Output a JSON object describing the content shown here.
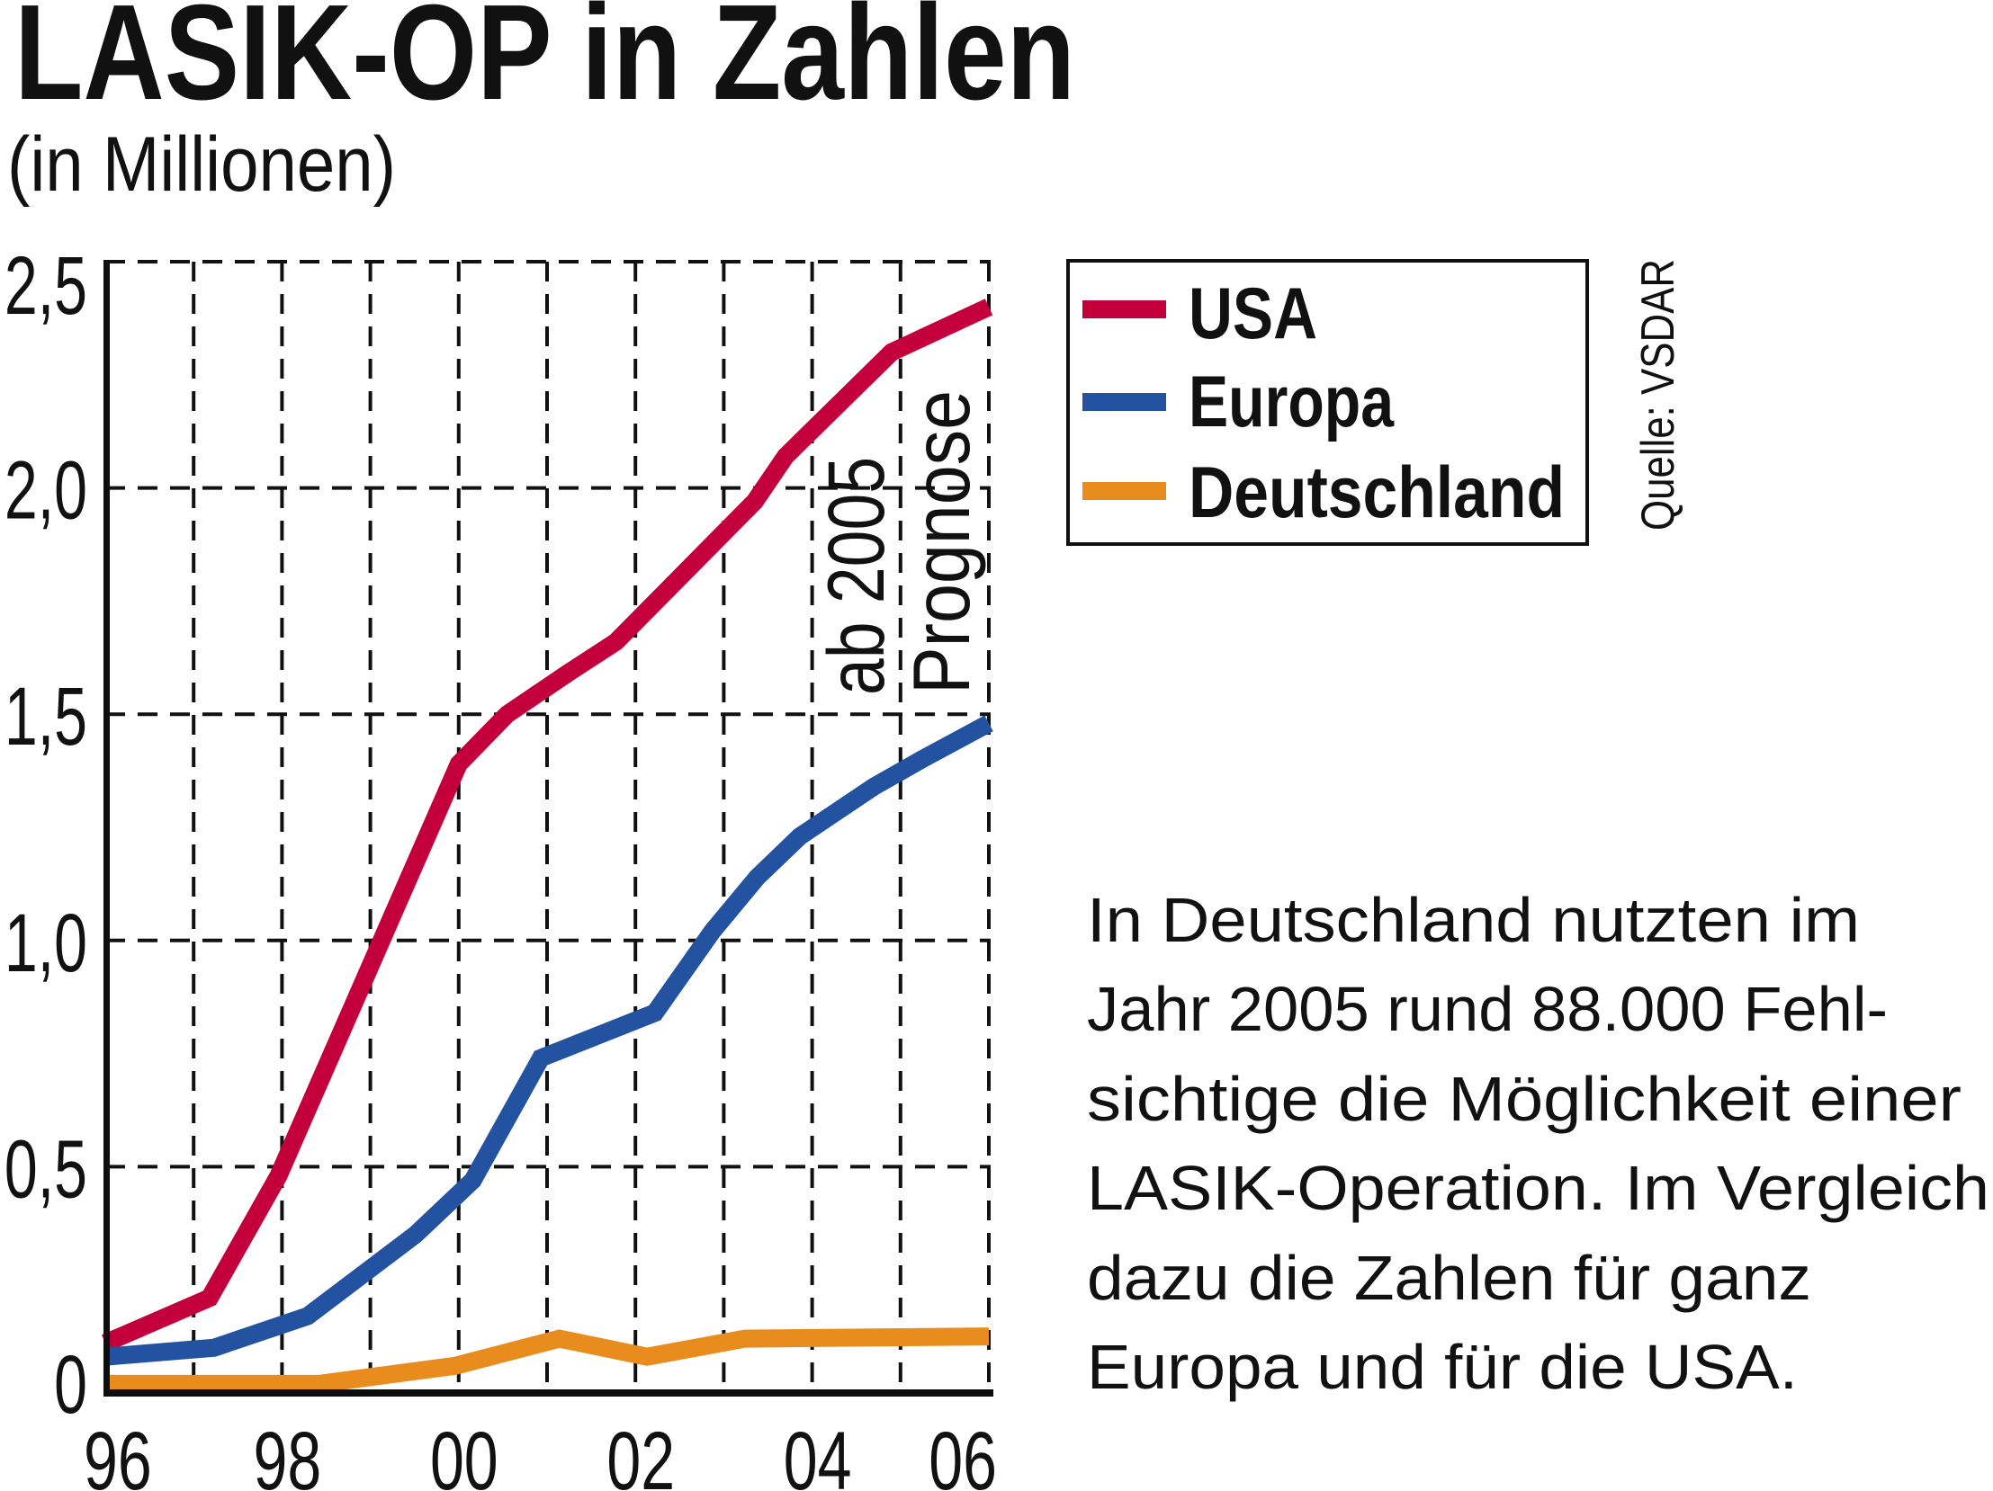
{
  "chart_data": {
    "type": "line",
    "title": "LASIK-OP in Zahlen",
    "subtitle": "(in Millionen)",
    "xlim": [
      1996,
      2006
    ],
    "ylim": [
      0,
      2.5
    ],
    "grid": true,
    "x_ticks": [
      1996,
      1997,
      1998,
      1999,
      2000,
      2001,
      2002,
      2003,
      2004,
      2005,
      2006
    ],
    "x_tick_labels": [
      {
        "x": 1996,
        "label": "96"
      },
      {
        "x": 1998,
        "label": "98"
      },
      {
        "x": 2000,
        "label": "00"
      },
      {
        "x": 2002,
        "label": "02"
      },
      {
        "x": 2004,
        "label": "04"
      },
      {
        "x": 2006,
        "label": "06"
      }
    ],
    "y_ticks": [
      {
        "y": 0,
        "label": "0"
      },
      {
        "y": 0.5,
        "label": "0,5"
      },
      {
        "y": 1.0,
        "label": "1,0"
      },
      {
        "y": 1.5,
        "label": "1,5"
      },
      {
        "y": 2.0,
        "label": "2,0"
      },
      {
        "y": 2.5,
        "label": "2,5"
      }
    ],
    "legend_position": "right",
    "annotation": [
      "ab 2005",
      "Prognose"
    ],
    "source": "Quelle: VSDAR",
    "series": [
      {
        "name": "USA",
        "color": "#C4003C",
        "x": [
          1996,
          1997.18,
          1997.96,
          2000,
          2000.55,
          2001.23,
          2001.78,
          2003.35,
          2003.7,
          2004.9,
          2006
        ],
        "values": [
          0.11,
          0.21,
          0.48,
          1.39,
          1.5,
          1.59,
          1.66,
          1.97,
          2.07,
          2.3,
          2.4
        ]
      },
      {
        "name": "Europa",
        "color": "#2252A0",
        "x": [
          1996,
          1997.23,
          1998.29,
          1999.51,
          2000.16,
          2000.93,
          2002.22,
          2002.87,
          2003.38,
          2003.86,
          2004.7,
          2005.24,
          2006
        ],
        "values": [
          0.08,
          0.1,
          0.17,
          0.35,
          0.47,
          0.74,
          0.84,
          1.02,
          1.14,
          1.23,
          1.34,
          1.4,
          1.48
        ]
      },
      {
        "name": "Deutschland",
        "color": "#E88C1E",
        "x": [
          1996,
          1998.42,
          1999.96,
          2001.14,
          2002.13,
          2003.24,
          2006
        ],
        "values": [
          0.02,
          0.02,
          0.06,
          0.12,
          0.08,
          0.12,
          0.125
        ]
      }
    ]
  },
  "caption": {
    "lines": [
      "In Deutschland nutzten im",
      "Jahr 2005 rund 88.000 Fehl-",
      "sichtige die Möglichkeit einer",
      "LASIK-Operation. Im Vergleich",
      "dazu die Zahlen für ganz",
      "Europa und für die USA."
    ]
  }
}
